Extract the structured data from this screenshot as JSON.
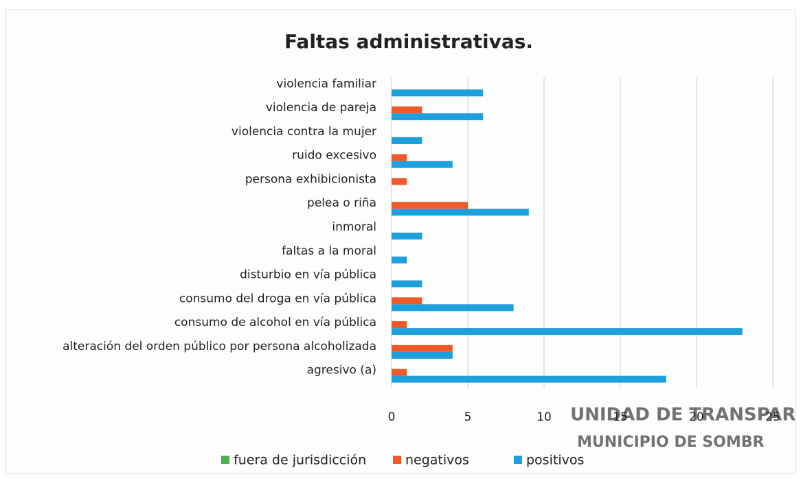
{
  "chart_data": {
    "type": "barh",
    "title": "Faltas administrativas.",
    "categories": [
      "violencia familiar",
      "violencia de pareja",
      "violencia contra la mujer",
      "ruido excesivo",
      "persona exhibicionista",
      "pelea o riña",
      "inmoral",
      "faltas a la moral",
      "disturbio en vía pública",
      "consumo del droga en vía pública",
      "consumo de alcohol en vía pública",
      "alteración del orden público por persona alcoholizada",
      "agresivo (a)"
    ],
    "series": [
      {
        "name": "fuera de jurisdicción",
        "color": "#4caf50",
        "values": [
          0,
          0,
          0,
          0,
          0,
          0,
          0,
          0,
          0,
          0,
          0,
          0,
          0
        ]
      },
      {
        "name": "negativos",
        "color": "#f05a28",
        "values": [
          0,
          2,
          0,
          1,
          1,
          5,
          0,
          0,
          0,
          2,
          1,
          4,
          1
        ]
      },
      {
        "name": "positivos",
        "color": "#1ea0dc",
        "values": [
          6,
          6,
          2,
          4,
          0,
          9,
          2,
          1,
          2,
          8,
          23,
          4,
          18
        ]
      }
    ],
    "xlim": [
      0,
      25
    ],
    "xticks": [
      0,
      5,
      10,
      15,
      20,
      25
    ],
    "grid": true,
    "legend": "bottom",
    "stamp": [
      "UNIDAD DE TRANSPAR",
      "MUNICIPIO DE SOMBR"
    ]
  }
}
